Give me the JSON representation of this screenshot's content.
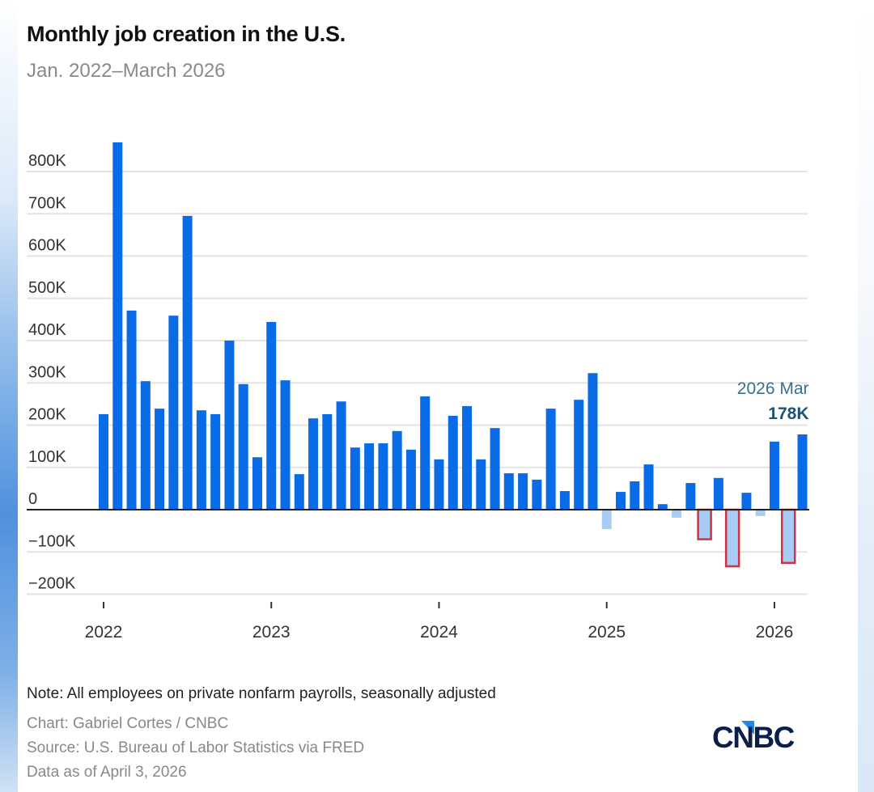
{
  "header": {
    "title": "Monthly job creation in the U.S.",
    "subtitle": "Jan. 2022–March 2026"
  },
  "footer": {
    "note": "Note: All employees on private nonfarm payrolls, seasonally adjusted",
    "chart_credit": "Chart: Gabriel Cortes / CNBC",
    "source": "Source: U.S. Bureau of Labor Statistics via FRED",
    "data_date": "Data as of April 3, 2026",
    "logo": "CNBC"
  },
  "colors": {
    "positive_bar": "#0a6be6",
    "negative_bar": "#a9ccf5",
    "highlight_outline": "#d62f3f",
    "grid": "#e3e3e3",
    "zero_line": "#222222",
    "logo_text": "#0c1f4a",
    "logo_accent": "#1a8cf0"
  },
  "chart_data": {
    "type": "bar",
    "title": "Monthly job creation in the U.S.",
    "subtitle": "Jan. 2022–March 2026",
    "xlabel": "",
    "ylabel": "",
    "ylim": [
      -200,
      800
    ],
    "yunit": "thousands of jobs",
    "grid": true,
    "legend": "none",
    "y_ticks": [
      {
        "value": 800,
        "label": "800K"
      },
      {
        "value": 700,
        "label": "700K"
      },
      {
        "value": 600,
        "label": "600K"
      },
      {
        "value": 500,
        "label": "500K"
      },
      {
        "value": 400,
        "label": "400K"
      },
      {
        "value": 300,
        "label": "300K"
      },
      {
        "value": 200,
        "label": "200K"
      },
      {
        "value": 100,
        "label": "100K"
      },
      {
        "value": 0,
        "label": "0"
      },
      {
        "value": -100,
        "label": "−100K"
      },
      {
        "value": -200,
        "label": "−200K"
      }
    ],
    "x_ticks": [
      {
        "index": 0,
        "label": "2022"
      },
      {
        "index": 12,
        "label": "2023"
      },
      {
        "index": 24,
        "label": "2024"
      },
      {
        "index": 36,
        "label": "2025"
      },
      {
        "index": 48,
        "label": "2026"
      }
    ],
    "categories": [
      "2022-01",
      "2022-02",
      "2022-03",
      "2022-04",
      "2022-05",
      "2022-06",
      "2022-07",
      "2022-08",
      "2022-09",
      "2022-10",
      "2022-11",
      "2022-12",
      "2023-01",
      "2023-02",
      "2023-03",
      "2023-04",
      "2023-05",
      "2023-06",
      "2023-07",
      "2023-08",
      "2023-09",
      "2023-10",
      "2023-11",
      "2023-12",
      "2024-01",
      "2024-02",
      "2024-03",
      "2024-04",
      "2024-05",
      "2024-06",
      "2024-07",
      "2024-08",
      "2024-09",
      "2024-10",
      "2024-11",
      "2024-12",
      "2025-01",
      "2025-02",
      "2025-03",
      "2025-04",
      "2025-05",
      "2025-06",
      "2025-07",
      "2025-08",
      "2025-09",
      "2025-10",
      "2025-11",
      "2025-12",
      "2026-01",
      "2026-02",
      "2026-03"
    ],
    "values": [
      226,
      869,
      471,
      304,
      239,
      459,
      695,
      235,
      226,
      400,
      297,
      124,
      444,
      306,
      84,
      216,
      226,
      256,
      147,
      157,
      157,
      186,
      142,
      268,
      119,
      222,
      245,
      119,
      193,
      86,
      86,
      71,
      239,
      44,
      260,
      323,
      -46,
      42,
      67,
      107,
      13,
      -19,
      63,
      -70,
      75,
      -134,
      40,
      -15,
      161,
      -126,
      178
    ],
    "highlighted": [
      "2025-08",
      "2025-10",
      "2026-02"
    ],
    "annotation": {
      "category": "2026-03",
      "label": "2026 Mar",
      "value_label": "178K"
    }
  }
}
